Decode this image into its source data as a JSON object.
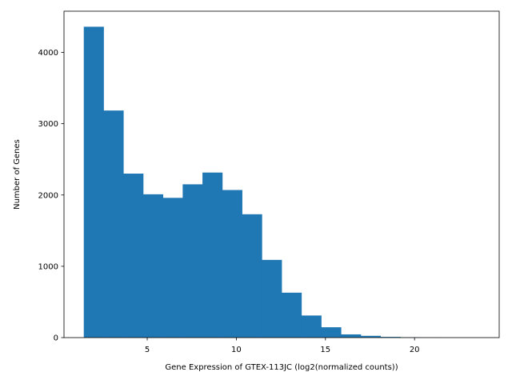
{
  "chart_data": {
    "type": "bar",
    "subtype": "histogram",
    "title": "",
    "xlabel": "Gene Expression of GTEX-113JC (log2(normalized counts))",
    "ylabel": "Number of Genes",
    "bin_edges": [
      1.44,
      2.55,
      3.66,
      4.77,
      5.88,
      6.99,
      8.1,
      9.21,
      10.32,
      11.43,
      12.54,
      13.65,
      14.76,
      15.87,
      16.98,
      18.09,
      19.2,
      20.31,
      21.42,
      22.53,
      23.64
    ],
    "counts": [
      4360,
      3185,
      2300,
      2010,
      1960,
      2150,
      2315,
      2070,
      1730,
      1090,
      630,
      310,
      145,
      45,
      25,
      10,
      5,
      2,
      1,
      1
    ],
    "xlim": [
      0.33,
      24.75
    ],
    "ylim": [
      0,
      4578
    ],
    "xticks": [
      5,
      10,
      15,
      20
    ],
    "yticks": [
      0,
      1000,
      2000,
      3000,
      4000
    ],
    "bar_color": "#1f77b4",
    "grid": false,
    "legend": "none"
  }
}
